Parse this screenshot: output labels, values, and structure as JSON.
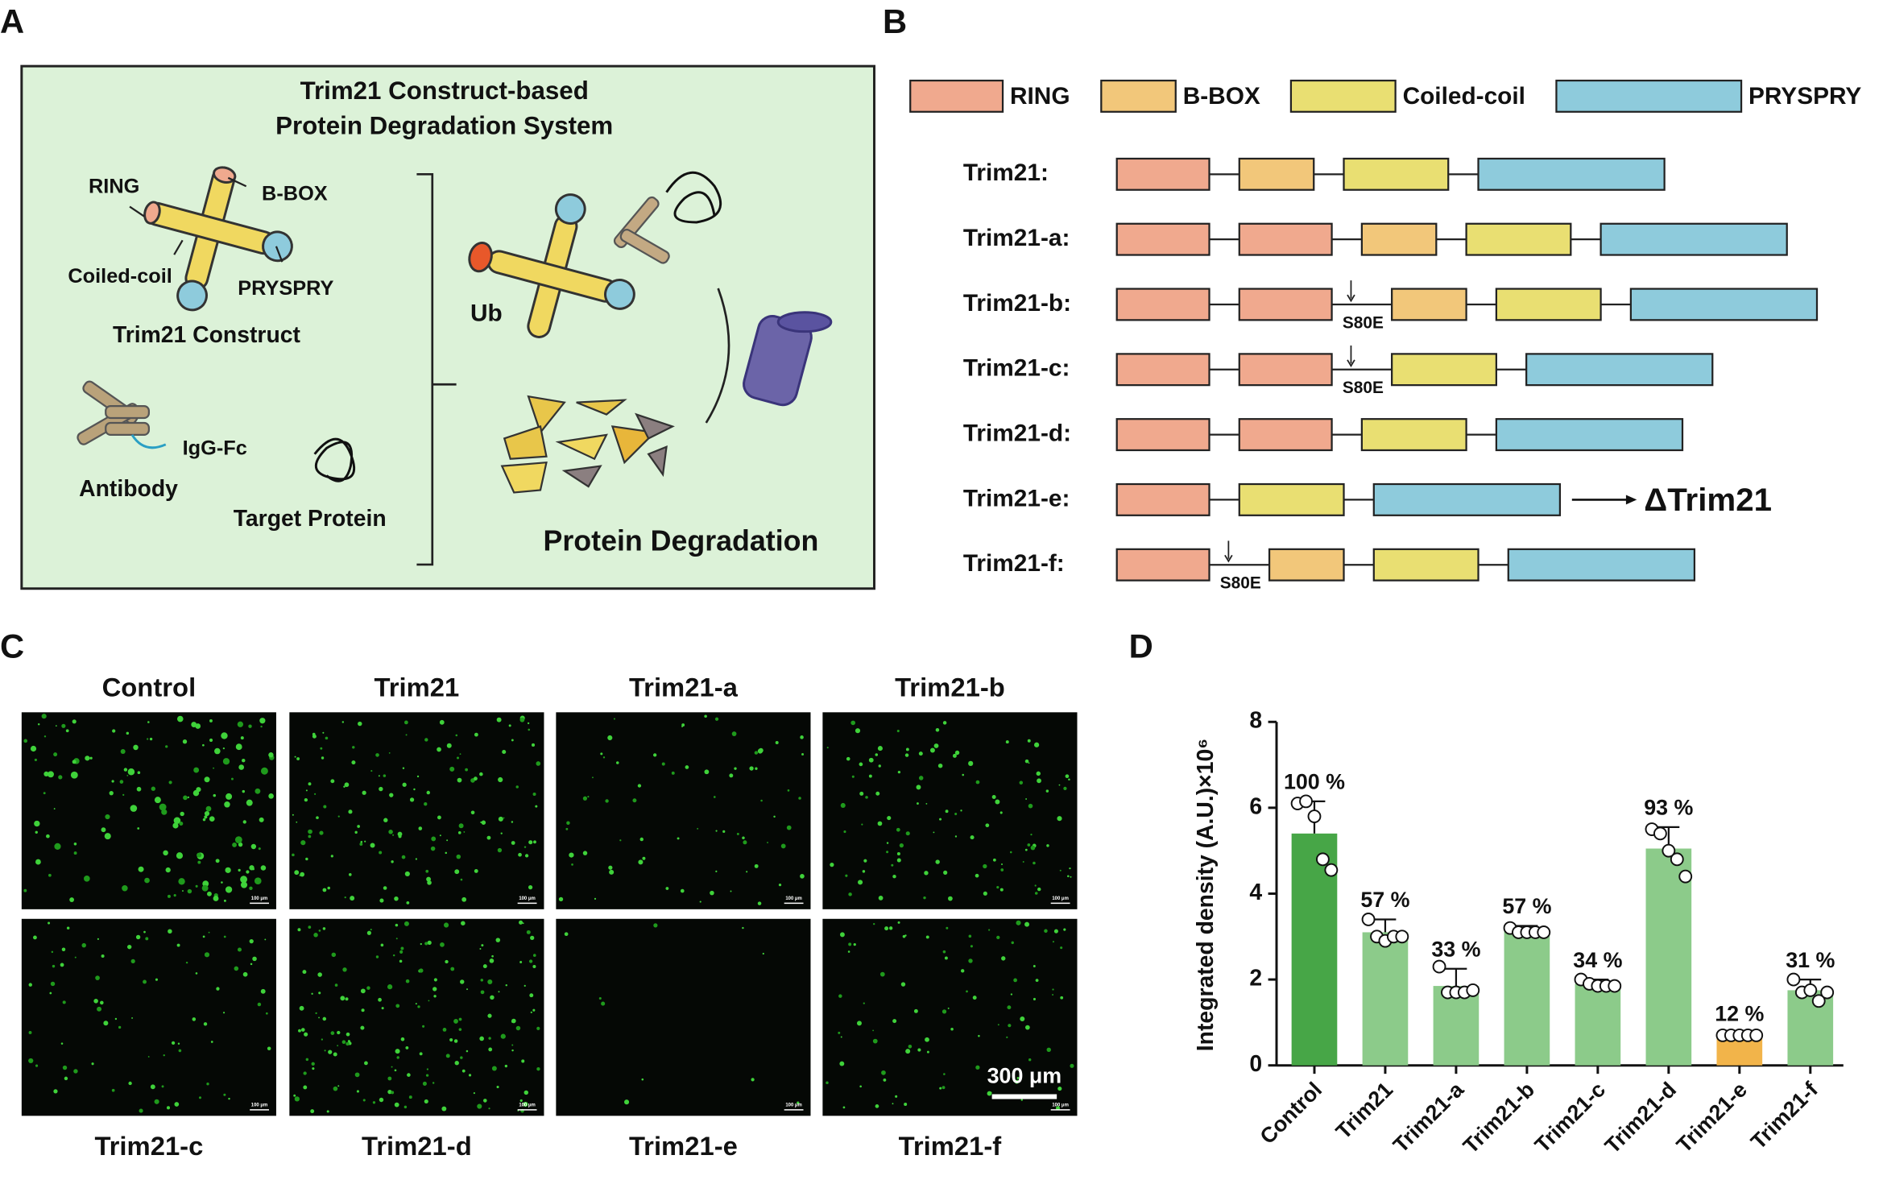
{
  "panel_labels": [
    "A",
    "B",
    "C",
    "D"
  ],
  "panel_a": {
    "title": [
      "Trim21 Construct-based",
      "Protein Degradation System"
    ],
    "domain_labels": [
      "RING",
      "B-BOX",
      "Coiled-coil",
      "PRYSPRY"
    ],
    "construct_label": "Trim21 Construct",
    "igg_label": "IgG-Fc",
    "antibody_label": "Antibody",
    "target_label": "Target Protein",
    "ub_label": "Ub",
    "degradation_label": "Protein Degradation"
  },
  "panel_b": {
    "legend": [
      {
        "name": "RING",
        "color": "#f0a98e"
      },
      {
        "name": "B-BOX",
        "color": "#f2c77a"
      },
      {
        "name": "Coiled-coil",
        "color": "#e9df72"
      },
      {
        "name": "PRYSPRY",
        "color": "#8ecbdc"
      }
    ],
    "constructs": [
      {
        "name": "Trim21:",
        "domains": [
          0,
          1,
          2,
          3
        ]
      },
      {
        "name": "Trim21-a:",
        "domains": [
          0,
          0,
          1,
          2,
          3
        ]
      },
      {
        "name": "Trim21-b:",
        "domains": [
          0,
          0,
          1,
          2,
          3
        ],
        "mutation": "S80E",
        "mutation_after": 2
      },
      {
        "name": "Trim21-c:",
        "domains": [
          0,
          0,
          2,
          3
        ],
        "mutation": "S80E",
        "mutation_after": 2
      },
      {
        "name": "Trim21-d:",
        "domains": [
          0,
          0,
          2,
          3
        ]
      },
      {
        "name": "Trim21-e:",
        "domains": [
          0,
          2,
          3
        ],
        "result": "ΔTrim21"
      },
      {
        "name": "Trim21-f:",
        "domains": [
          0,
          1,
          2,
          3
        ],
        "mutation": "S80E",
        "mutation_after": 1
      }
    ]
  },
  "panel_c": {
    "top_labels": [
      "Control",
      "Trim21",
      "Trim21-a",
      "Trim21-b"
    ],
    "bottom_labels": [
      "Trim21-c",
      "Trim21-d",
      "Trim21-e",
      "Trim21-f"
    ],
    "image_scale_label": "100 μm",
    "scale_bar_label": "300 μm"
  },
  "chart_data": {
    "type": "bar",
    "ylabel": "Integrated density (A.U.)×10⁶",
    "categories": [
      "Control",
      "Trim21",
      "Trim21-a",
      "Trim21-b",
      "Trim21-c",
      "Trim21-d",
      "Trim21-e",
      "Trim21-f"
    ],
    "values": [
      5.4,
      3.1,
      1.85,
      3.15,
      1.9,
      5.05,
      0.65,
      1.75
    ],
    "errors": [
      0.75,
      0.3,
      0.4,
      0.1,
      0.1,
      0.5,
      0.1,
      0.25
    ],
    "colors": [
      "#47a647",
      "#8ccb8a",
      "#8ccb8a",
      "#8ccb8a",
      "#8ccb8a",
      "#8ccb8a",
      "#f2b44a",
      "#8ccb8a"
    ],
    "points": [
      [
        6.1,
        6.15,
        5.8,
        4.8,
        4.55
      ],
      [
        3.4,
        3.0,
        2.9,
        3.0,
        3.0
      ],
      [
        2.3,
        1.7,
        1.7,
        1.7,
        1.75
      ],
      [
        3.2,
        3.1,
        3.1,
        3.1,
        3.1
      ],
      [
        2.0,
        1.9,
        1.85,
        1.85,
        1.85
      ],
      [
        5.5,
        5.4,
        5.0,
        4.8,
        4.4
      ],
      [
        0.7,
        0.7,
        0.7,
        0.7,
        0.7
      ],
      [
        2.0,
        1.7,
        1.75,
        1.5,
        1.7
      ]
    ],
    "relative_labels": [
      "100 %",
      "57 %",
      "33 %",
      "57 %",
      "34 %",
      "93 %",
      "12 %",
      "31 %"
    ],
    "ylim": [
      0,
      8
    ],
    "yticks": [
      0,
      2,
      4,
      6,
      8
    ]
  }
}
